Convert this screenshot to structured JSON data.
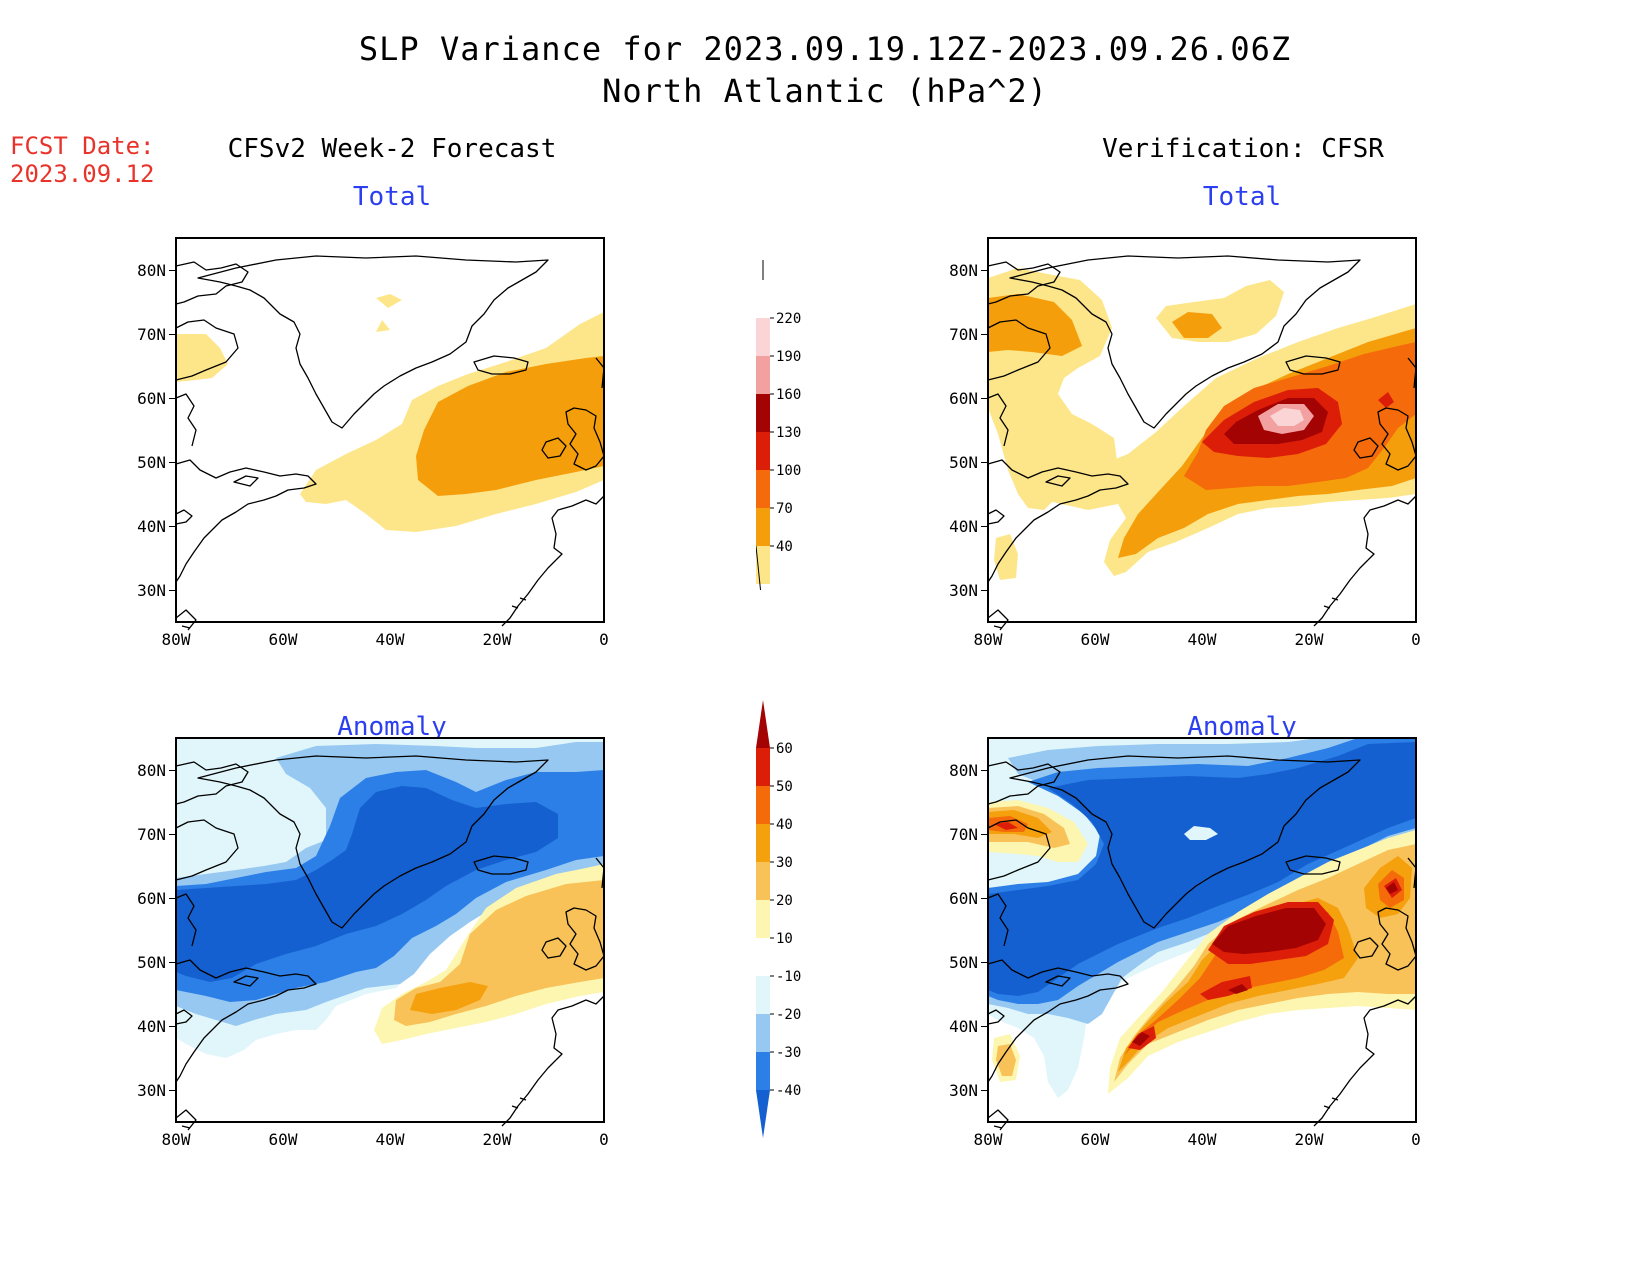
{
  "title_line1": "SLP Variance for 2023.09.19.12Z-2023.09.26.06Z",
  "title_line2": "North Atlantic (hPa^2)",
  "fcst_label": "FCST Date:",
  "fcst_date": "2023.09.12",
  "columns": {
    "left": "CFSv2 Week-2 Forecast",
    "right": "Verification: CFSR"
  },
  "panel_titles": {
    "total": "Total",
    "anomaly": "Anomaly"
  },
  "axes": {
    "lat_labels": [
      "80N",
      "70N",
      "60N",
      "50N",
      "40N",
      "30N"
    ],
    "lon_labels": [
      "80W",
      "60W",
      "40W",
      "20W",
      "0"
    ]
  },
  "colorbars": {
    "total": {
      "labels": [
        "40",
        "70",
        "100",
        "130",
        "160",
        "190",
        "220"
      ],
      "colors": [
        "#fde68a",
        "#f59e0b",
        "#f56a0a",
        "#dc1d08",
        "#a30303",
        "#f2a0a0",
        "#fbd5d5",
        "#ffffff"
      ]
    },
    "anomaly": {
      "labels": [
        "-40",
        "-30",
        "-20",
        "-10",
        "10",
        "20",
        "30",
        "40",
        "50",
        "60"
      ],
      "colors": [
        "#1560d0",
        "#2c7fe6",
        "#96c8f2",
        "#e0f6fa",
        "#ffffff",
        "#fdf6b0",
        "#f8c258",
        "#f5a00d",
        "#f56b0a",
        "#dc1d08",
        "#a30303"
      ]
    }
  },
  "map_colors": {
    "t40": "#fde68a",
    "t70": "#f59e0b",
    "t100": "#f56a0a",
    "t130": "#dc1d08",
    "t160": "#a30303",
    "t190": "#f2a0a0",
    "t220": "#fbd5d5",
    "n40": "#1560d0",
    "n30": "#2c7fe6",
    "n20": "#96c8f2",
    "n10": "#e0f6fa",
    "p10": "#fdf6b0",
    "p20": "#f8c258",
    "p30": "#f5a00d",
    "p40": "#f56b0a",
    "p50": "#dc1d08",
    "p60": "#a30303"
  }
}
